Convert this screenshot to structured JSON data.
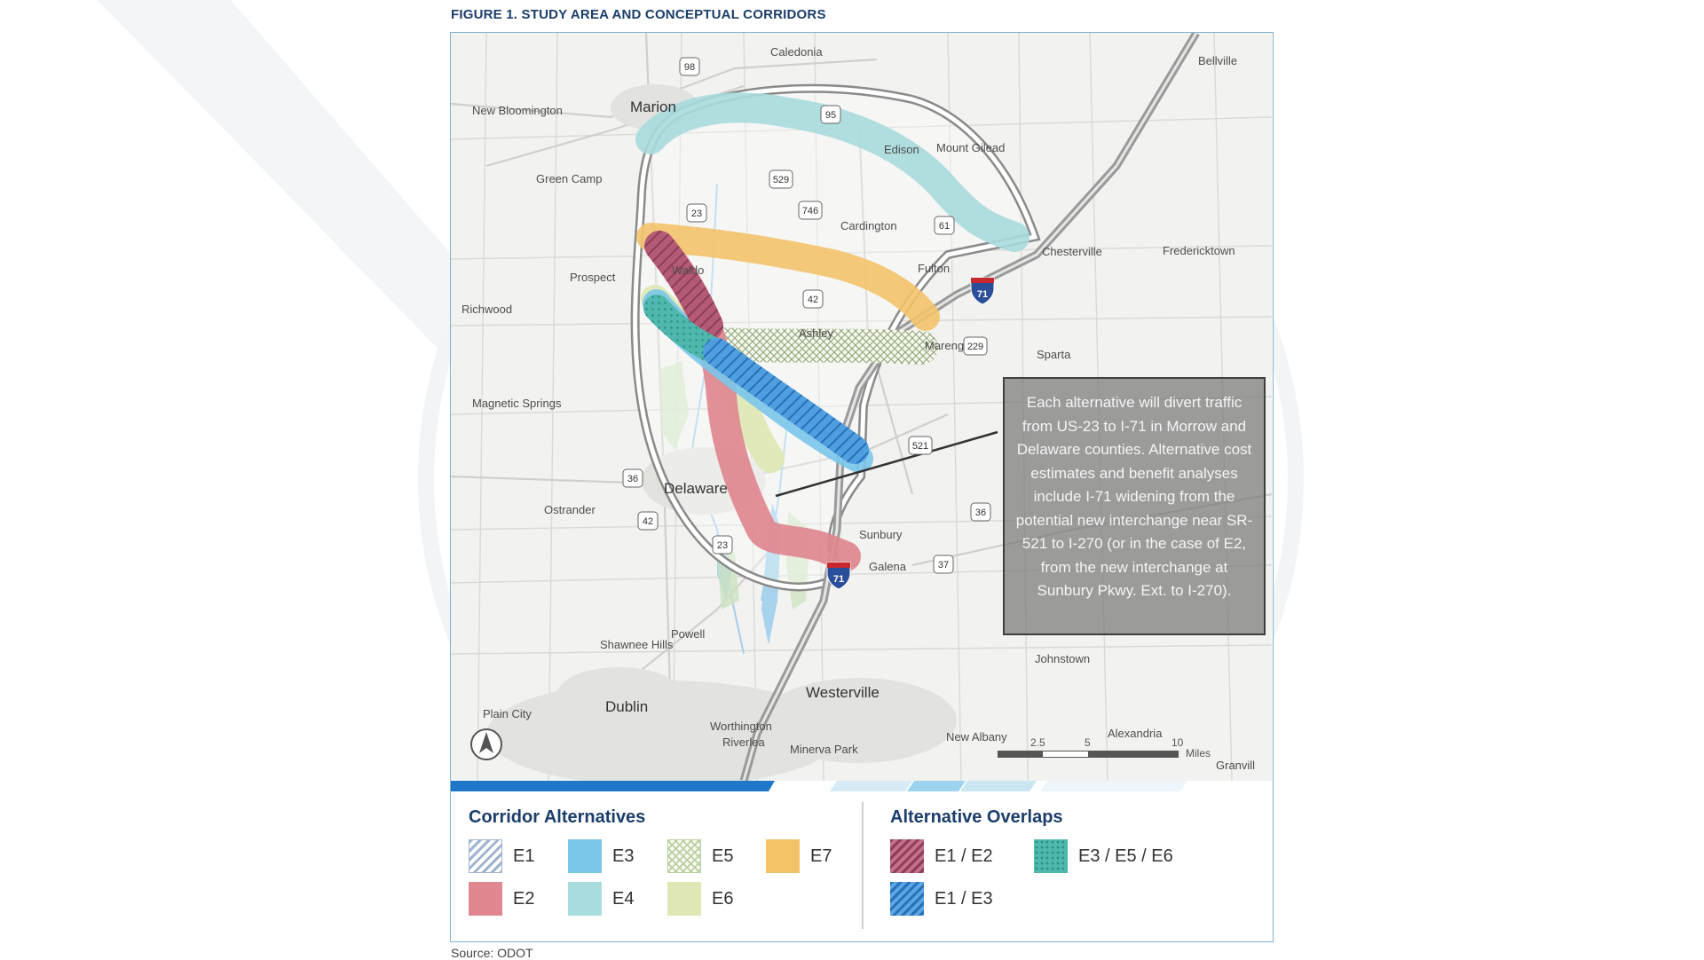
{
  "figure": {
    "title": "FIGURE 1. STUDY AREA AND CONCEPTUAL CORRIDORS",
    "source": "Source: ODOT"
  },
  "map": {
    "places": {
      "caledonia": "Caledonia",
      "bellville": "Bellville",
      "new_bloomington": "New Bloomington",
      "marion": "Marion",
      "edison": "Edison",
      "mount_gilead": "Mount Gilead",
      "green_camp": "Green Camp",
      "cardington": "Cardington",
      "chesterville": "Chesterville",
      "fredericktown": "Fredericktown",
      "fulton": "Fulton",
      "waldo": "Waldo",
      "prospect": "Prospect",
      "richwood": "Richwood",
      "ashley": "Ashley",
      "marengo": "Mareng",
      "sparta": "Sparta",
      "magnetic_springs": "Magnetic Springs",
      "delaware": "Delaware",
      "ostrander": "Ostrander",
      "sunbury": "Sunbury",
      "galena": "Galena",
      "powell": "Powell",
      "shawnee_hills": "Shawnee Hills",
      "johnstown": "Johnstown",
      "plain_city": "Plain City",
      "dublin": "Dublin",
      "westerville": "Westerville",
      "worthington": "Worthington",
      "riverlea": "Riverlea",
      "minerva_park": "Minerva Park",
      "new_albany": "New Albany",
      "alexandria": "Alexandria",
      "granville": "Granvill"
    },
    "shields": {
      "r98": "98",
      "r95": "95",
      "r529": "529",
      "r746": "746",
      "r61": "61",
      "us23_north": "23",
      "r42_north": "42",
      "r229": "229",
      "r521": "521",
      "r36_west": "36",
      "r36_east": "36",
      "r42_south": "42",
      "us23_south": "23",
      "r37": "37",
      "i71_north": "71",
      "i71_south": "71"
    },
    "callout": "Each alternative will divert traffic from US-23 to I-71 in Morrow and Delaware counties. Alternative cost estimates and benefit analyses include I-71 widening from the potential new interchange near SR-521 to I-270 (or in the case of E2, from the new interchange at Sunbury Pkwy. Ext. to I-270).",
    "scale": {
      "ticks": [
        "2.5",
        "5",
        "10"
      ],
      "unit": "Miles"
    },
    "north_arrow_icon": "north-arrow-icon"
  },
  "legend": {
    "alternatives_title": "Corridor Alternatives",
    "overlaps_title": "Alternative Overlaps",
    "alternatives": [
      {
        "label": "E1",
        "color": "#9fb4cf",
        "pattern": "diagonal-stripes"
      },
      {
        "label": "E3",
        "color": "#7ac7ea",
        "pattern": "solid"
      },
      {
        "label": "E5",
        "color": "#b9cfa0",
        "pattern": "crosshatch"
      },
      {
        "label": "E7",
        "color": "#f3c36a",
        "pattern": "solid"
      },
      {
        "label": "E2",
        "color": "#e0878f",
        "pattern": "solid"
      },
      {
        "label": "E4",
        "color": "#a9dcdc",
        "pattern": "solid"
      },
      {
        "label": "E6",
        "color": "#dfe8b4",
        "pattern": "solid"
      }
    ],
    "overlaps": [
      {
        "label": "E1 / E2",
        "color": "#b04f70",
        "pattern": "diagonal-stripes"
      },
      {
        "label": "E3 / E5 / E6",
        "color": "#48b3a8",
        "pattern": "dots"
      },
      {
        "label": "E1 / E3",
        "color": "#2f7fd0",
        "pattern": "diagonal-stripes"
      }
    ]
  }
}
